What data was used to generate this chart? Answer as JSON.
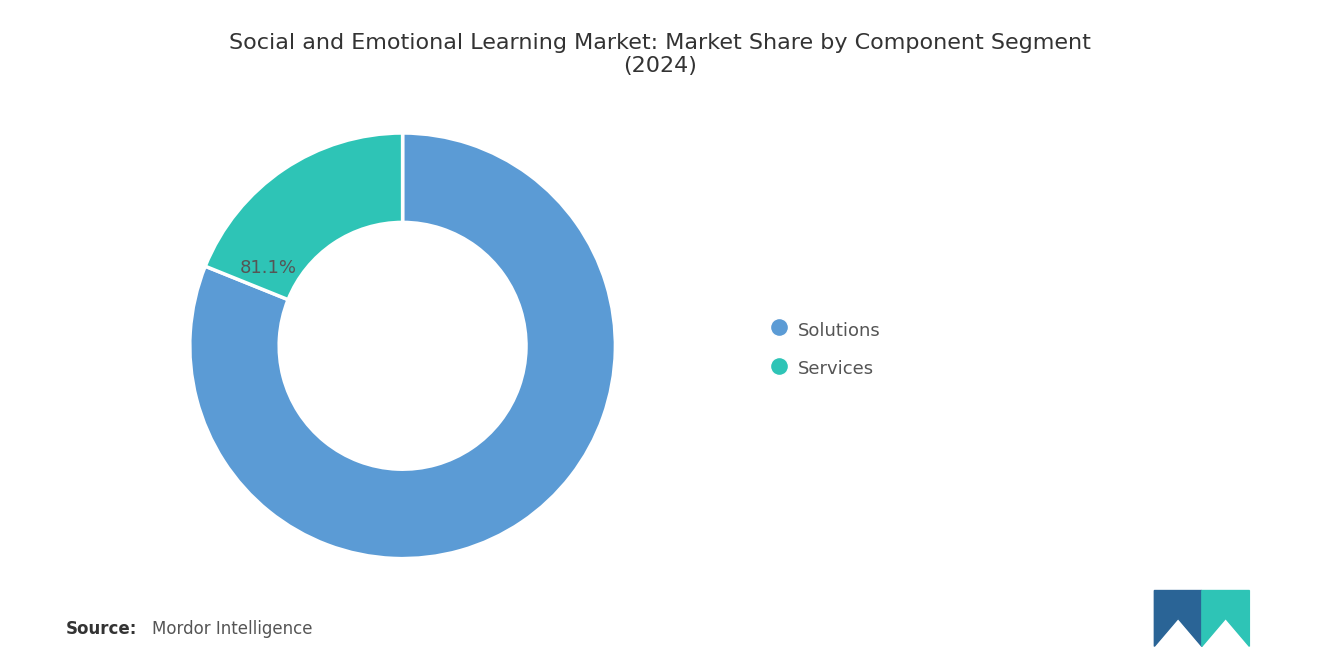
{
  "title": "Social and Emotional Learning Market: Market Share by Component Segment\n(2024)",
  "segments": [
    "Solutions",
    "Services"
  ],
  "values": [
    81.1,
    18.9
  ],
  "colors": [
    "#5b9bd5",
    "#2ec4b6"
  ],
  "label_text": "81.1%",
  "source_bold": "Source:",
  "source_normal": "Mordor Intelligence",
  "background_color": "#ffffff",
  "title_fontsize": 16,
  "legend_fontsize": 13,
  "label_fontsize": 13,
  "source_fontsize": 12,
  "donut_width": 0.42,
  "start_angle": 90,
  "logo_dark": "#2a6496",
  "logo_teal": "#2ec4b6"
}
